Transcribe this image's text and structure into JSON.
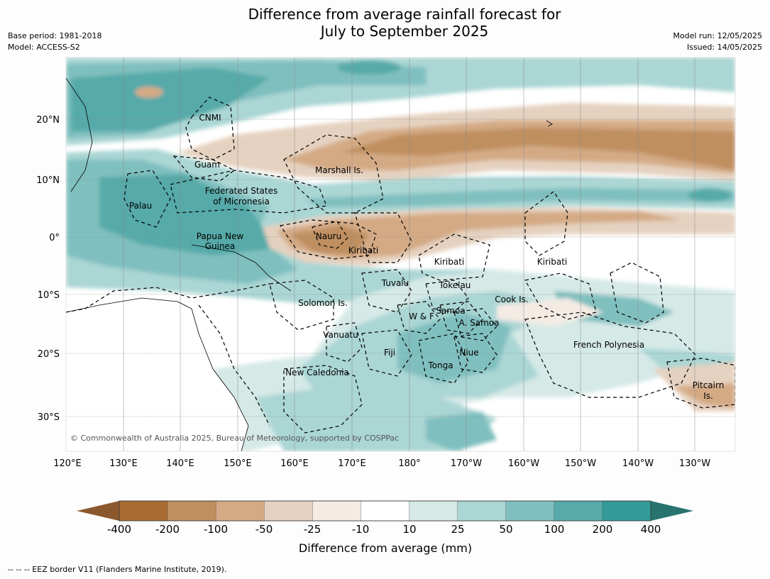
{
  "title_line1": "Difference from average rainfall forecast for",
  "title_line2": "July to September 2025",
  "meta_left": [
    "Base period: 1981-2018",
    "Model: ACCESS-S2"
  ],
  "meta_right": [
    "Model run: 12/05/2025",
    "Issued: 14/05/2025"
  ],
  "lat_labels": [
    "20°N",
    "10°N",
    "0°",
    "10°S",
    "20°S",
    "30°S"
  ],
  "lon_labels": [
    "120°E",
    "130°E",
    "140°E",
    "150°E",
    "160°E",
    "170°E",
    "180°",
    "170°W",
    "160°W",
    "150°W",
    "140°W",
    "130°W"
  ],
  "region_labels": [
    "CNMI",
    "Guam",
    "Marshall Is.",
    "Federated States",
    "of Micronesia",
    "Palau",
    "Papua New",
    "Guinea",
    "Nauru",
    "Kiribati",
    "Kiribati",
    "Kiribati",
    "Tuvalu",
    "Tokelau",
    "Cook Is.",
    "Solomon Is.",
    "W & F",
    "Samoa",
    "A. Samoa",
    "Vanuatu",
    "Fiji",
    "Niue",
    "Tonga",
    "French Polynesia",
    "New Caledonia",
    "Pitcairn",
    "Is."
  ],
  "copyright": "© Commonwealth of Australia 2025, Bureau of Meteorology, supported by COSPPac",
  "colorbar": {
    "labels": [
      "-400",
      "-200",
      "-100",
      "-50",
      "-25",
      "-10",
      "10",
      "25",
      "50",
      "100",
      "200",
      "400"
    ],
    "colors": [
      "#a96c33",
      "#bf8f60",
      "#d4aa85",
      "#e5d1bf",
      "#f4ebe4",
      "#ffffff",
      "#d5e9e7",
      "#aad6d4",
      "#80bfbf",
      "#57aaa9",
      "#339a97"
    ],
    "under_color": "#8b582d",
    "over_color": "#26736f",
    "title": "Difference from average (mm)"
  },
  "footer": "--  --  -- EEZ border V11 (Flanders Marine Institute, 2019)."
}
